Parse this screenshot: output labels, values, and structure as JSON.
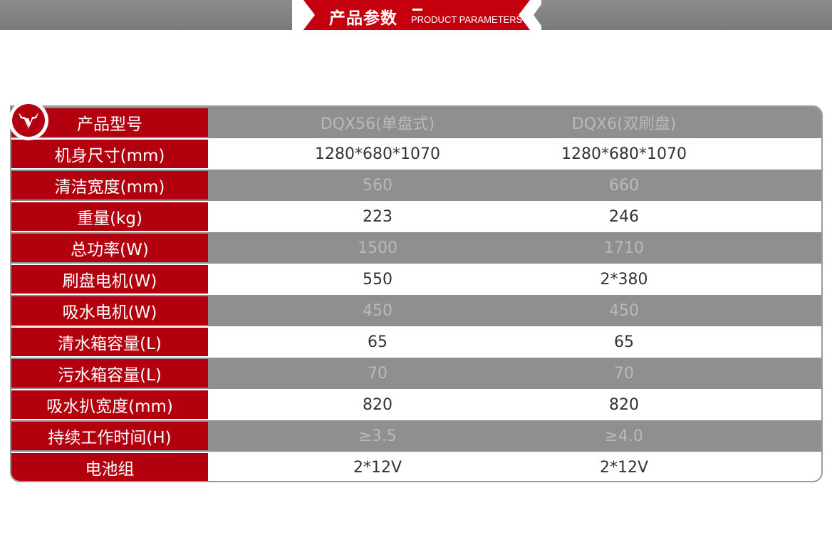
{
  "banner": {
    "title": "产品参数",
    "subtitle": "PRODUCT PARAMETERS"
  },
  "colors": {
    "accent": "#b3000f",
    "gray_row": "#8f8f8f"
  },
  "logo": {
    "icon": "bull-head-logo"
  },
  "table": {
    "rows": [
      {
        "label": "产品型号",
        "values": [
          "DQX56(单盘式)",
          "DQX6(双刷盘)"
        ]
      },
      {
        "label": "机身尺寸(mm)",
        "values": [
          "1280*680*1070",
          "1280*680*1070"
        ]
      },
      {
        "label": "清洁宽度(mm)",
        "values": [
          "560",
          "660"
        ]
      },
      {
        "label": "重量(kg)",
        "values": [
          "223",
          "246"
        ]
      },
      {
        "label": "总功率(W)",
        "values": [
          "1500",
          "1710"
        ]
      },
      {
        "label": "刷盘电机(W)",
        "values": [
          "550",
          "2*380"
        ]
      },
      {
        "label": "吸水电机(W)",
        "values": [
          "450",
          "450"
        ]
      },
      {
        "label": "清水箱容量(L)",
        "values": [
          "65",
          "65"
        ]
      },
      {
        "label": "污水箱容量(L)",
        "values": [
          "70",
          "70"
        ]
      },
      {
        "label": "吸水扒宽度(mm)",
        "values": [
          "820",
          "820"
        ]
      },
      {
        "label": "持续工作时间(H)",
        "values": [
          "≥3.5",
          "≥4.0"
        ]
      },
      {
        "label": "电池组",
        "values": [
          "2*12V",
          "2*12V"
        ]
      }
    ]
  }
}
